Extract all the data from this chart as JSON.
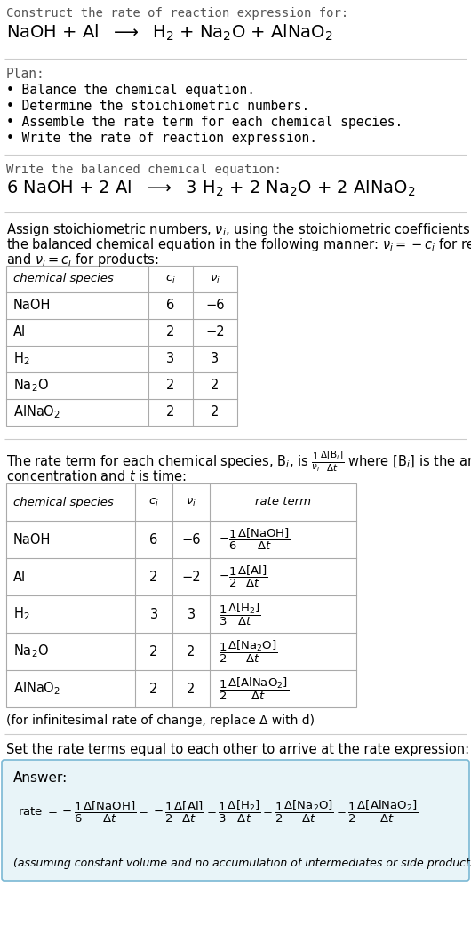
{
  "bg_color": "#ffffff",
  "text_color": "#000000",
  "title_color": "#555555",
  "line_color": "#cccccc",
  "table_line_color": "#aaaaaa",
  "answer_box_color": "#e8f4f8",
  "answer_box_border": "#7ab8d4",
  "section1_title": "Construct the rate of reaction expression for:",
  "plan_title": "Plan:",
  "plan_items": [
    "• Balance the chemical equation.",
    "• Determine the stoichiometric numbers.",
    "• Assemble the rate term for each chemical species.",
    "• Write the rate of reaction expression."
  ],
  "section3_title": "Write the balanced chemical equation:",
  "section6_title": "Set the rate terms equal to each other to arrive at the rate expression:",
  "infinitesimal_note": "(for infinitesimal rate of change, replace Δ with d)",
  "answer_label": "Answer:",
  "answer_note": "(assuming constant volume and no accumulation of intermediates or side products)"
}
